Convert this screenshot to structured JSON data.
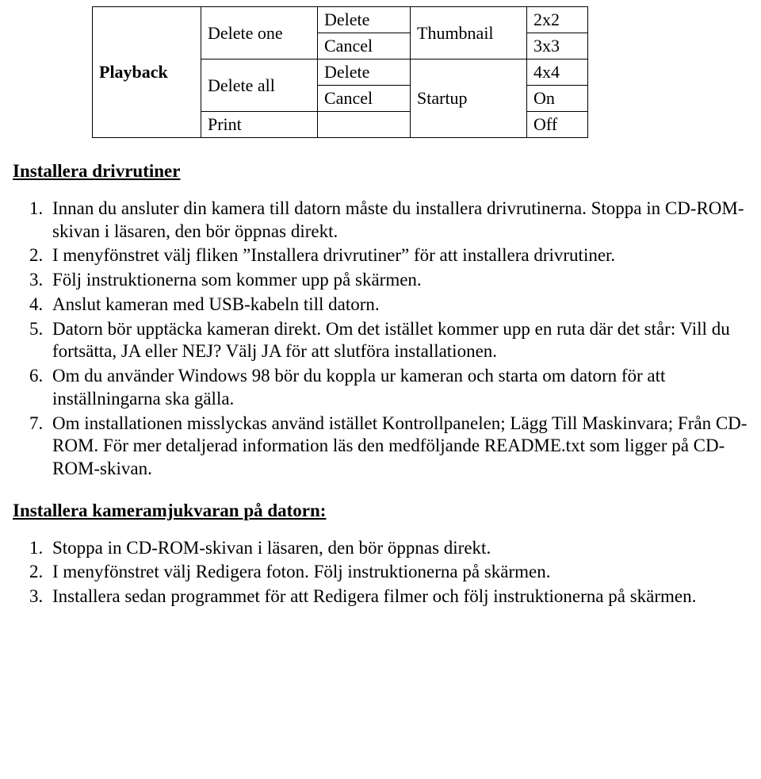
{
  "table": {
    "col0": "Playback",
    "rows": [
      {
        "c1": "Delete one",
        "c2": "Delete",
        "c3": "",
        "c4": "2x2"
      },
      {
        "c1": "",
        "c2": "Cancel",
        "c3": "Thumbnail",
        "c4": "3x3"
      },
      {
        "c1": "Delete all",
        "c2": "Delete",
        "c3": "",
        "c4": "4x4"
      },
      {
        "c1": "",
        "c2": "Cancel",
        "c3": "Startup",
        "c4": "On"
      },
      {
        "c1": "Print",
        "c2": "",
        "c3": "",
        "c4": "Off"
      }
    ]
  },
  "section1": {
    "title": "Installera drivrutiner",
    "items": [
      "Innan du ansluter din kamera till datorn måste du installera drivrutinerna. Stoppa in CD-ROM-skivan i läsaren, den bör öppnas direkt.",
      "I menyfönstret välj fliken ”Installera drivrutiner” för att installera drivrutiner.",
      "Följ instruktionerna som kommer upp på skärmen.",
      "Anslut kameran med USB-kabeln till datorn.",
      "Datorn bör upptäcka kameran direkt. Om det istället kommer upp en ruta där det står: Vill du fortsätta, JA eller NEJ? Välj JA för att slutföra installationen.",
      "Om du använder Windows 98 bör du koppla ur kameran och starta om datorn för att inställningarna ska gälla.",
      "Om installationen misslyckas använd istället Kontrollpanelen; Lägg Till Maskinvara; Från CD-ROM. För mer detaljerad information läs den medföljande README.txt som ligger på CD-ROM-skivan."
    ]
  },
  "section2": {
    "title": "Installera kameramjukvaran på datorn:",
    "items": [
      "Stoppa in CD-ROM-skivan i läsaren, den bör öppnas direkt.",
      "I menyfönstret välj Redigera foton. Följ instruktionerna på skärmen.",
      "Installera sedan programmet för att Redigera filmer och följ instruktionerna på skärmen."
    ]
  }
}
